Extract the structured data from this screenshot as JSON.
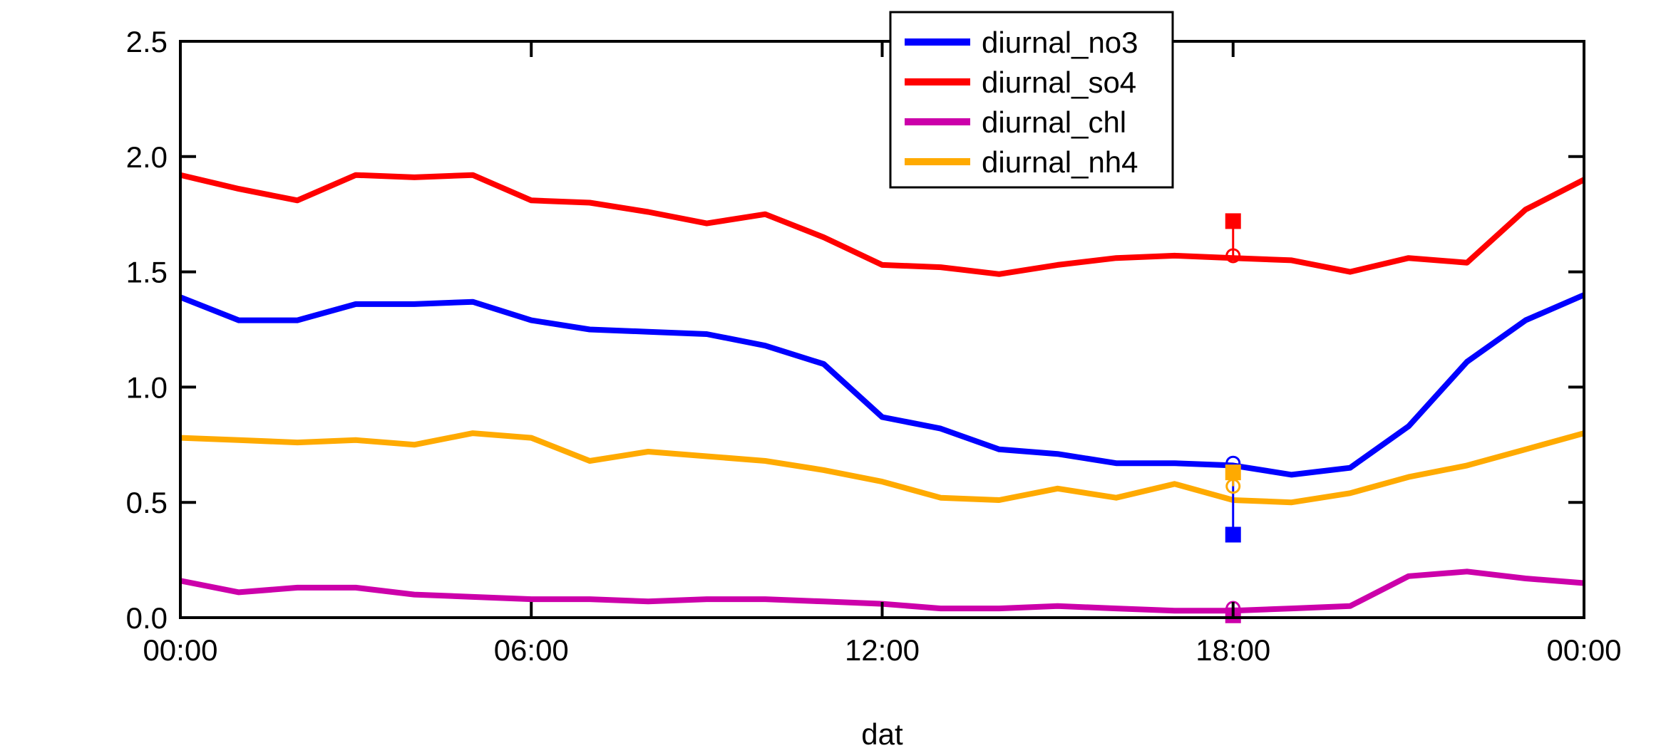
{
  "chart_data": {
    "type": "line",
    "title": "",
    "xlabel": "dat",
    "ylabel": "",
    "xlim": [
      0,
      24
    ],
    "ylim": [
      0,
      2.5
    ],
    "grid": false,
    "legend_placement": "top-center",
    "x_ticks": [
      {
        "value": 0,
        "label": "00:00"
      },
      {
        "value": 6,
        "label": "06:00"
      },
      {
        "value": 12,
        "label": "12:00"
      },
      {
        "value": 18,
        "label": "18:00"
      },
      {
        "value": 24,
        "label": "00:00"
      }
    ],
    "y_ticks": [
      {
        "value": 0,
        "label": "0.0"
      },
      {
        "value": 0.5,
        "label": "0.5"
      },
      {
        "value": 1.0,
        "label": "1.0"
      },
      {
        "value": 1.5,
        "label": "1.5"
      },
      {
        "value": 2.0,
        "label": "2.0"
      },
      {
        "value": 2.5,
        "label": "2.5"
      }
    ],
    "x": [
      0,
      1,
      2,
      3,
      4,
      5,
      6,
      7,
      8,
      9,
      10,
      11,
      12,
      13,
      14,
      15,
      16,
      17,
      18,
      19,
      20,
      21,
      22,
      23,
      24
    ],
    "series": [
      {
        "name": "diurnal_no3",
        "color": "#0000ff",
        "values": [
          1.39,
          1.29,
          1.29,
          1.36,
          1.36,
          1.37,
          1.29,
          1.25,
          1.24,
          1.23,
          1.18,
          1.1,
          0.87,
          0.82,
          0.73,
          0.71,
          0.67,
          0.67,
          0.66,
          0.62,
          0.65,
          0.83,
          1.11,
          1.29,
          1.4
        ]
      },
      {
        "name": "diurnal_so4",
        "color": "#ff0000",
        "values": [
          1.92,
          1.86,
          1.81,
          1.92,
          1.91,
          1.92,
          1.81,
          1.8,
          1.76,
          1.71,
          1.75,
          1.65,
          1.53,
          1.52,
          1.49,
          1.53,
          1.56,
          1.57,
          1.56,
          1.55,
          1.5,
          1.56,
          1.54,
          1.77,
          1.9
        ]
      },
      {
        "name": "diurnal_chl",
        "color": "#cc00aa",
        "values": [
          0.16,
          0.11,
          0.13,
          0.13,
          0.1,
          0.09,
          0.08,
          0.08,
          0.07,
          0.08,
          0.08,
          0.07,
          0.06,
          0.04,
          0.04,
          0.05,
          0.04,
          0.03,
          0.03,
          0.04,
          0.05,
          0.18,
          0.2,
          0.17,
          0.15
        ]
      },
      {
        "name": "diurnal_nh4",
        "color": "#ffaa00",
        "values": [
          0.78,
          0.77,
          0.76,
          0.77,
          0.75,
          0.8,
          0.78,
          0.68,
          0.72,
          0.7,
          0.68,
          0.64,
          0.59,
          0.52,
          0.51,
          0.56,
          0.52,
          0.58,
          0.51,
          0.5,
          0.54,
          0.61,
          0.66,
          0.73,
          0.8
        ]
      }
    ],
    "annotations": [
      {
        "series": "diurnal_so4",
        "x": 18,
        "marker": 1.72,
        "circle": 1.57,
        "color": "#ff0000"
      },
      {
        "series": "diurnal_no3",
        "x": 18,
        "marker": 0.36,
        "circle": 0.67,
        "color": "#0000ff"
      },
      {
        "series": "diurnal_nh4",
        "x": 18,
        "marker": 0.63,
        "circle": 0.57,
        "color": "#ffaa00"
      },
      {
        "series": "diurnal_chl",
        "x": 18,
        "marker": 0.01,
        "circle": 0.04,
        "color": "#cc00aa"
      }
    ]
  }
}
